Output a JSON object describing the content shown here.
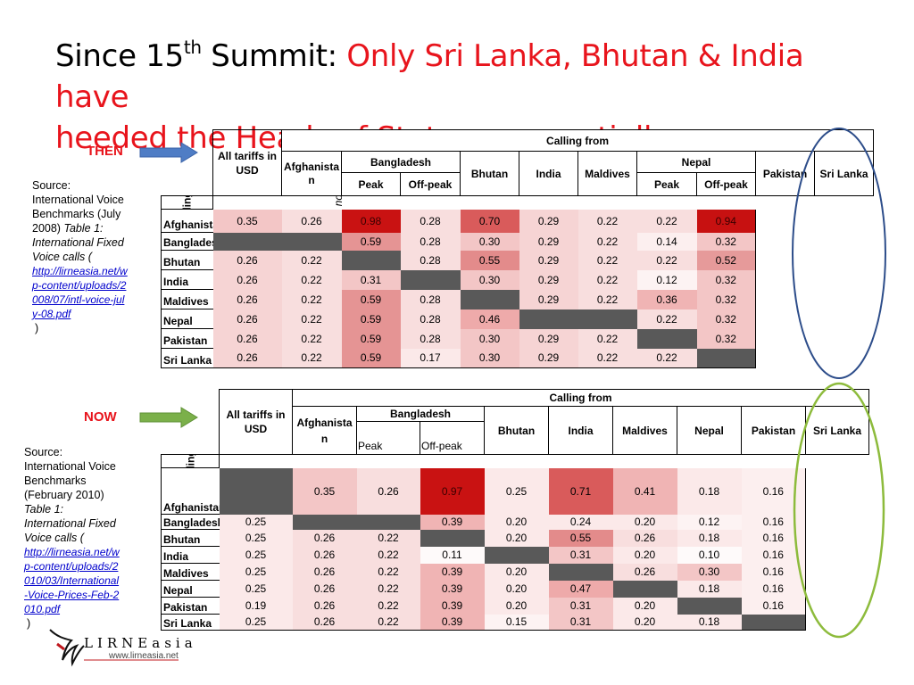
{
  "title": {
    "prefix": "Since 15",
    "sup": "th",
    "after_sup": " Summit: ",
    "red_line1": "Only Sri Lanka, Bhutan & India have",
    "red_line2": "heeded the Heads of State even partially"
  },
  "colors": {
    "title_red": "#e8141c",
    "then_arrow": "#4f7dc5",
    "now_arrow": "#7bb04a",
    "blue_oval": "#2d4d8a",
    "green_oval": "#8dbb3c",
    "blocked": "#595959"
  },
  "labels": {
    "then": "THEN",
    "now": "NOW",
    "calling_to": "Calling to",
    "calling_from": "Calling from"
  },
  "then": {
    "source_lines": [
      "Source:",
      "International Voice",
      "Benchmarks (July",
      "2008)"
    ],
    "source_italic": [
      "Table 1:",
      "International Fixed",
      "Voice calls ("
    ],
    "source_link": [
      "http://lirneasia.net/w",
      "p-content/uploads/2",
      "008/07/intl-voice-jul",
      "y-08.pdf"
    ],
    "source_close": ")",
    "corner": "All tariffs in USD",
    "afghanistan_header": [
      "Afghanista",
      "n"
    ],
    "bangladesh": "Bangladesh",
    "nepal": "Nepal",
    "peak": "Peak",
    "offpeak": "Off-peak",
    "cols": [
      "Bhutan",
      "India",
      "Maldives",
      "Pakistan",
      "Sri Lanka"
    ],
    "note": "Tariff were not available",
    "rows": [
      {
        "name": "Afghanistan",
        "cells": [
          "0.35",
          "0.26",
          "0.98",
          "0.28",
          "0.70",
          "0.29",
          "0.22",
          "0.22",
          "0.94"
        ]
      },
      {
        "name": "Bangladesh",
        "cells": [
          "",
          "",
          "0.59",
          "0.28",
          "0.30",
          "0.29",
          "0.22",
          "0.14",
          "0.32"
        ]
      },
      {
        "name": "Bhutan",
        "cells": [
          "0.26",
          "0.22",
          "",
          "0.28",
          "0.55",
          "0.29",
          "0.22",
          "0.22",
          "0.52"
        ]
      },
      {
        "name": "India",
        "cells": [
          "0.26",
          "0.22",
          "0.31",
          "",
          "0.30",
          "0.29",
          "0.22",
          "0.12",
          "0.32"
        ]
      },
      {
        "name": "Maldives",
        "cells": [
          "0.26",
          "0.22",
          "0.59",
          "0.28",
          "",
          "0.29",
          "0.22",
          "0.36",
          "0.32"
        ]
      },
      {
        "name": "Nepal",
        "cells": [
          "0.26",
          "0.22",
          "0.59",
          "0.28",
          "0.46",
          "",
          "",
          "0.22",
          "0.32"
        ]
      },
      {
        "name": "Pakistan",
        "cells": [
          "0.26",
          "0.22",
          "0.59",
          "0.28",
          "0.30",
          "0.29",
          "0.22",
          "",
          "0.32"
        ]
      },
      {
        "name": "Sri Lanka",
        "cells": [
          "0.26",
          "0.22",
          "0.59",
          "0.17",
          "0.30",
          "0.29",
          "0.22",
          "0.22",
          ""
        ]
      }
    ],
    "fills": [
      [
        "#f3c6c6",
        "#f8dede",
        "#c91212",
        "#f8dede",
        "#d95b5b",
        "#f6d4d4",
        "#f8dede",
        "#f8dede",
        "#c71111"
      ],
      [
        "#595959",
        "#595959",
        "#e59494",
        "#f8dede",
        "#f3c6c6",
        "#f6d4d4",
        "#f8dede",
        "#fcefef",
        "#f3c6c6"
      ],
      [
        "#f6d4d4",
        "#f8dede",
        "#595959",
        "#f8dede",
        "#e38b8b",
        "#f6d4d4",
        "#f8dede",
        "#f8dede",
        "#e69a9a"
      ],
      [
        "#f6d4d4",
        "#f8dede",
        "#f3c6c6",
        "#595959",
        "#f3c6c6",
        "#f6d4d4",
        "#f8dede",
        "#fdf3f3",
        "#f3c6c6"
      ],
      [
        "#f6d4d4",
        "#f8dede",
        "#e59494",
        "#f8dede",
        "#595959",
        "#f6d4d4",
        "#f8dede",
        "#f0b4b4",
        "#f3c6c6"
      ],
      [
        "#f6d4d4",
        "#f8dede",
        "#e59494",
        "#f8dede",
        "#eeaaaa",
        "#595959",
        "#595959",
        "#f8dede",
        "#f3c6c6"
      ],
      [
        "#f6d4d4",
        "#f8dede",
        "#e59494",
        "#f8dede",
        "#f3c6c6",
        "#f6d4d4",
        "#f8dede",
        "#595959",
        "#f3c6c6"
      ],
      [
        "#f6d4d4",
        "#f8dede",
        "#e59494",
        "#fbe9e9",
        "#f3c6c6",
        "#f6d4d4",
        "#f8dede",
        "#f8dede",
        "#595959"
      ]
    ]
  },
  "now": {
    "source_lines": [
      "Source:",
      "International Voice",
      "Benchmarks",
      "(February 2010)"
    ],
    "source_italic": [
      "Table 1:",
      "International Fixed",
      "Voice calls ("
    ],
    "source_link": [
      "http://lirneasia.net/w",
      "p-content/uploads/2",
      "010/03/International",
      "-Voice-Prices-Feb-2",
      "010.pdf"
    ],
    "source_close": ")",
    "corner": "All tariffs in USD",
    "afghanistan_header": [
      "Afghanista",
      "n"
    ],
    "bangladesh": "Bangladesh",
    "peak": "Peak",
    "offpeak": "Off-peak",
    "cols": [
      "Bhutan",
      "India",
      "Maldives",
      "Nepal",
      "Pakistan",
      "Sri Lanka"
    ],
    "rows": [
      {
        "name": "Afghanistan",
        "cells": [
          "",
          "0.35",
          "0.26",
          "0.97",
          "0.25",
          "0.71",
          "0.41",
          "0.18",
          "0.16"
        ]
      },
      {
        "name": "Bangladesh",
        "cells": [
          "0.25",
          "",
          "",
          "0.39",
          "0.20",
          "0.24",
          "0.20",
          "0.12",
          "0.16"
        ]
      },
      {
        "name": "Bhutan",
        "cells": [
          "0.25",
          "0.26",
          "0.22",
          "",
          "0.20",
          "0.55",
          "0.26",
          "0.18",
          "0.16"
        ]
      },
      {
        "name": "India",
        "cells": [
          "0.25",
          "0.26",
          "0.22",
          "0.11",
          "",
          "0.31",
          "0.20",
          "0.10",
          "0.16"
        ]
      },
      {
        "name": "Maldives",
        "cells": [
          "0.25",
          "0.26",
          "0.22",
          "0.39",
          "0.20",
          "",
          "0.26",
          "0.30",
          "0.16"
        ]
      },
      {
        "name": "Nepal",
        "cells": [
          "0.25",
          "0.26",
          "0.22",
          "0.39",
          "0.20",
          "0.47",
          "",
          "0.18",
          "0.16"
        ]
      },
      {
        "name": "Pakistan",
        "cells": [
          "0.19",
          "0.26",
          "0.22",
          "0.39",
          "0.20",
          "0.31",
          "0.20",
          "",
          "0.16"
        ]
      },
      {
        "name": "Sri Lanka",
        "cells": [
          "0.25",
          "0.26",
          "0.22",
          "0.39",
          "0.15",
          "0.31",
          "0.20",
          "0.18",
          ""
        ]
      }
    ],
    "fills": [
      [
        "#595959",
        "#f3c6c6",
        "#f8dede",
        "#c91212",
        "#fbe9e9",
        "#d95b5b",
        "#f0b4b4",
        "#fbe9e9",
        "#fcefef"
      ],
      [
        "#fbe9e9",
        "#595959",
        "#595959",
        "#f0b4b4",
        "#fbe9e9",
        "#fbe9e9",
        "#fbe9e9",
        "#fdf3f3",
        "#fcefef"
      ],
      [
        "#fbe9e9",
        "#f8dede",
        "#f8dede",
        "#595959",
        "#fbe9e9",
        "#e38b8b",
        "#f8dede",
        "#fbe9e9",
        "#fcefef"
      ],
      [
        "#fbe9e9",
        "#f8dede",
        "#f8dede",
        "#fefafa",
        "#595959",
        "#f3c6c6",
        "#fbe9e9",
        "#fefafa",
        "#fcefef"
      ],
      [
        "#fbe9e9",
        "#f8dede",
        "#f8dede",
        "#f0b4b4",
        "#fbe9e9",
        "#595959",
        "#f8dede",
        "#f3c6c6",
        "#fcefef"
      ],
      [
        "#fbe9e9",
        "#f8dede",
        "#f8dede",
        "#f0b4b4",
        "#fbe9e9",
        "#eeaaaa",
        "#595959",
        "#fbe9e9",
        "#fcefef"
      ],
      [
        "#fbe9e9",
        "#f8dede",
        "#f8dede",
        "#f0b4b4",
        "#fbe9e9",
        "#f3c6c6",
        "#fbe9e9",
        "#595959",
        "#fcefef"
      ],
      [
        "#fbe9e9",
        "#f8dede",
        "#f8dede",
        "#f0b4b4",
        "#fdf3f3",
        "#f3c6c6",
        "#fbe9e9",
        "#fbe9e9",
        "#595959"
      ]
    ]
  },
  "logo": {
    "text": "LIRNEasia",
    "url": "www.lirneasia.net"
  }
}
